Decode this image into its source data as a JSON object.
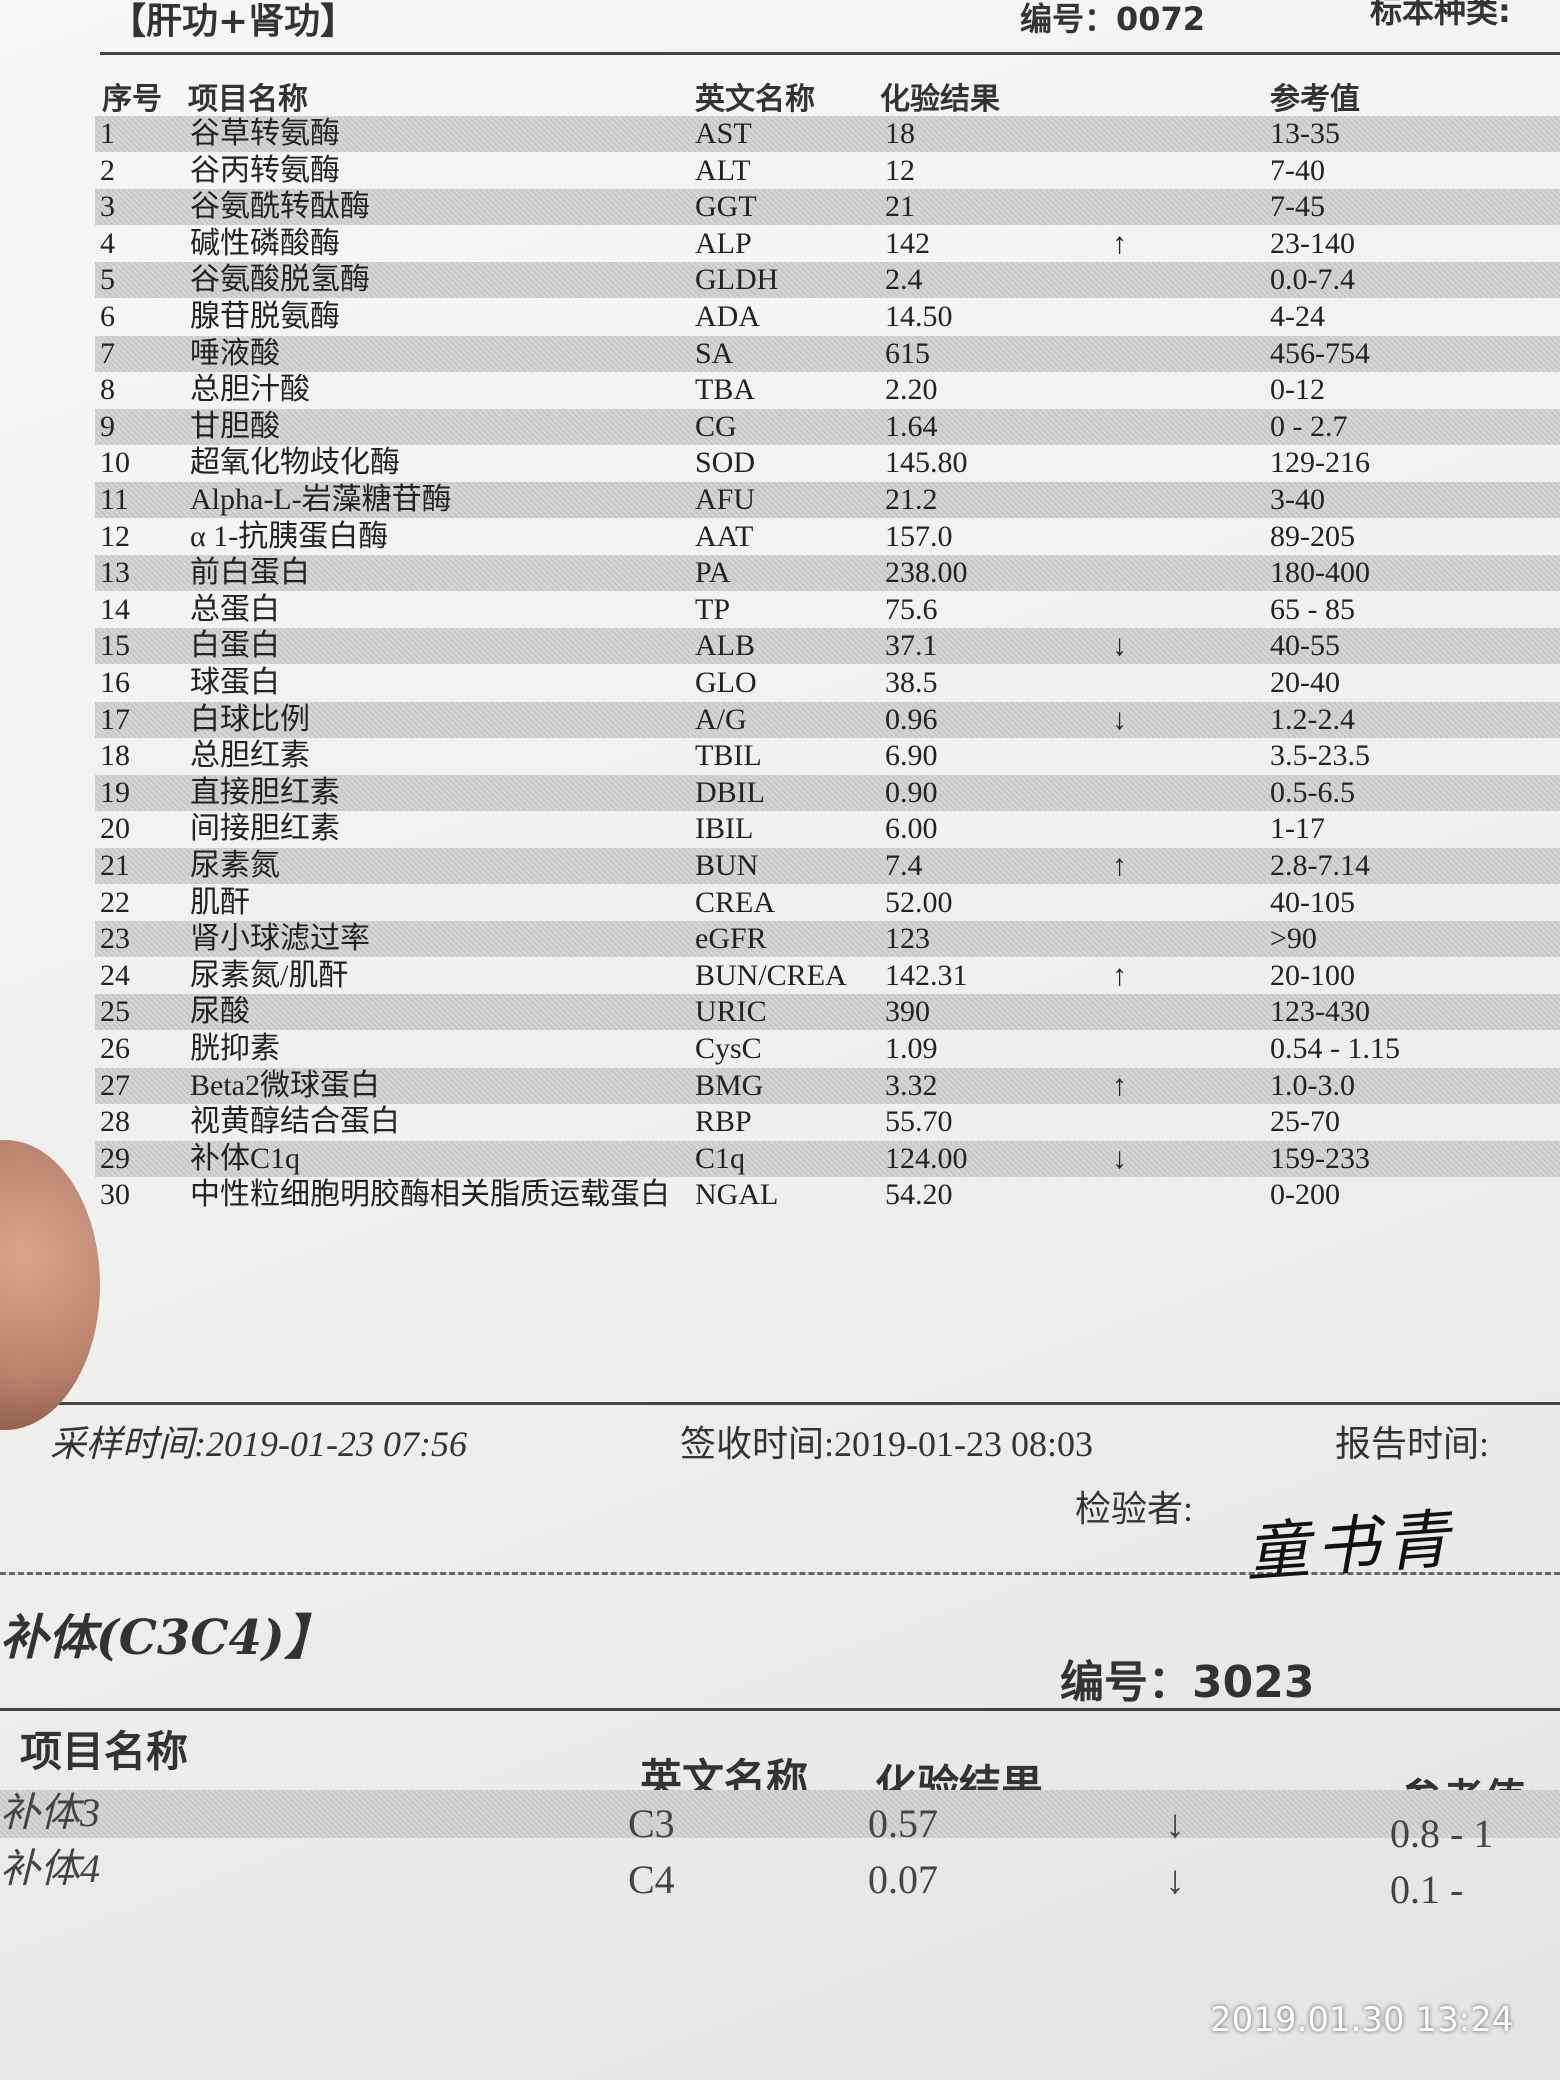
{
  "header": {
    "title": "【肝功+肾功】",
    "number": "编号：0072",
    "specimen": "标本种类:"
  },
  "table": {
    "columns": [
      "序号",
      "项目名称",
      "英文名称",
      "化验结果",
      "参考值"
    ],
    "rows": [
      {
        "no": 1,
        "name": "谷草转氨酶",
        "en": "AST",
        "result": "18",
        "ref": "13-35"
      },
      {
        "no": 2,
        "name": "谷丙转氨酶",
        "en": "ALT",
        "result": "12",
        "ref": "7-40"
      },
      {
        "no": 3,
        "name": "谷氨酰转酞酶",
        "en": "GGT",
        "result": "21",
        "ref": "7-45"
      },
      {
        "no": 4,
        "name": "碱性磷酸酶",
        "en": "ALP",
        "result": "142",
        "flag": "↑",
        "ref": "23-140"
      },
      {
        "no": 5,
        "name": "谷氨酸脱氢酶",
        "en": "GLDH",
        "result": "2.4",
        "ref": "0.0-7.4"
      },
      {
        "no": 6,
        "name": "腺苷脱氨酶",
        "en": "ADA",
        "result": "14.50",
        "ref": "4-24"
      },
      {
        "no": 7,
        "name": "唾液酸",
        "en": "SA",
        "result": "615",
        "ref": "456-754"
      },
      {
        "no": 8,
        "name": "总胆汁酸",
        "en": "TBA",
        "result": "2.20",
        "ref": "0-12"
      },
      {
        "no": 9,
        "name": "甘胆酸",
        "en": "CG",
        "result": "1.64",
        "ref": "0 - 2.7"
      },
      {
        "no": 10,
        "name": "超氧化物歧化酶",
        "en": "SOD",
        "result": "145.80",
        "ref": "129-216"
      },
      {
        "no": 11,
        "name": "Alpha-L-岩藻糖苷酶",
        "en": "AFU",
        "result": "21.2",
        "ref": "3-40"
      },
      {
        "no": 12,
        "name": "α 1-抗胰蛋白酶",
        "en": "AAT",
        "result": "157.0",
        "ref": "89-205"
      },
      {
        "no": 13,
        "name": "前白蛋白",
        "en": "PA",
        "result": "238.00",
        "ref": "180-400"
      },
      {
        "no": 14,
        "name": "总蛋白",
        "en": "TP",
        "result": "75.6",
        "ref": "65 - 85"
      },
      {
        "no": 15,
        "name": "白蛋白",
        "en": "ALB",
        "result": "37.1",
        "flag": "↓",
        "ref": "40-55"
      },
      {
        "no": 16,
        "name": "球蛋白",
        "en": "GLO",
        "result": "38.5",
        "ref": "20-40"
      },
      {
        "no": 17,
        "name": "白球比例",
        "en": "A/G",
        "result": "0.96",
        "flag": "↓",
        "ref": "1.2-2.4"
      },
      {
        "no": 18,
        "name": "总胆红素",
        "en": "TBIL",
        "result": "6.90",
        "ref": "3.5-23.5"
      },
      {
        "no": 19,
        "name": "直接胆红素",
        "en": "DBIL",
        "result": "0.90",
        "ref": "0.5-6.5"
      },
      {
        "no": 20,
        "name": "间接胆红素",
        "en": "IBIL",
        "result": "6.00",
        "ref": "1-17"
      },
      {
        "no": 21,
        "name": "尿素氮",
        "en": "BUN",
        "result": "7.4",
        "flag": "↑",
        "ref": "2.8-7.14"
      },
      {
        "no": 22,
        "name": "肌酐",
        "en": "CREA",
        "result": "52.00",
        "ref": "40-105"
      },
      {
        "no": 23,
        "name": "肾小球滤过率",
        "en": "eGFR",
        "result": "123",
        "ref": ">90"
      },
      {
        "no": 24,
        "name": "尿素氮/肌酐",
        "en": "BUN/CREA",
        "result": "142.31",
        "flag": "↑",
        "ref": "20-100"
      },
      {
        "no": 25,
        "name": "尿酸",
        "en": "URIC",
        "result": "390",
        "ref": "123-430"
      },
      {
        "no": 26,
        "name": "胱抑素",
        "en": "CysC",
        "result": "1.09",
        "ref": "0.54 - 1.15"
      },
      {
        "no": 27,
        "name": "Beta2微球蛋白",
        "en": "BMG",
        "result": "3.32",
        "flag": "↑",
        "ref": "1.0-3.0"
      },
      {
        "no": 28,
        "name": "视黄醇结合蛋白",
        "en": "RBP",
        "result": "55.70",
        "ref": "25-70"
      },
      {
        "no": 29,
        "name": "补体C1q",
        "en": "C1q",
        "result": "124.00",
        "flag": "↓",
        "ref": "159-233"
      },
      {
        "no": 30,
        "name": "中性粒细胞明胶酶相关脂质运载蛋白",
        "en": "NGAL",
        "result": "54.20",
        "ref": "0-200"
      }
    ]
  },
  "footer": {
    "sampling": "采样时间:2019-01-23 07:56",
    "received": "签收时间:2019-01-23 08:03",
    "reported": "报告时间:",
    "inspector": "检验者:",
    "signature": "童书青"
  },
  "section2": {
    "title": "补体(C3C4)】",
    "number": "编号：3023",
    "columns": [
      "项目名称",
      "英文名称",
      "化验结果",
      "参考值"
    ],
    "rows": [
      {
        "name": "补体3",
        "en": "C3",
        "result": "0.57",
        "flag": "↓",
        "ref": "0.8 - 1"
      },
      {
        "name": "补体4",
        "en": "C4",
        "result": "0.07",
        "flag": "↓",
        "ref": "0.1 -"
      }
    ]
  },
  "timestamp": "2019.01.30 13:24"
}
